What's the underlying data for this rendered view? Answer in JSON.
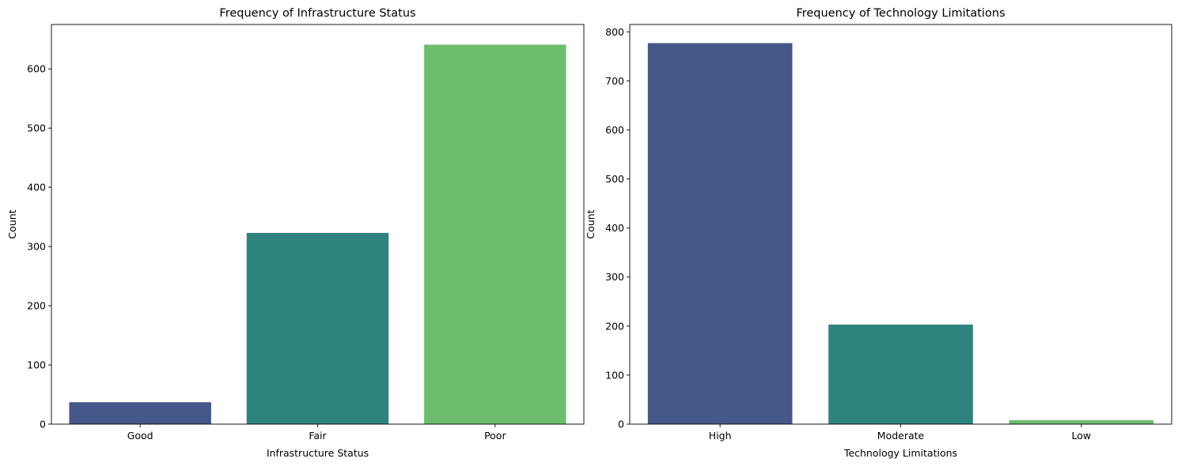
{
  "chart_data": [
    {
      "type": "bar",
      "title": "Frequency of Infrastructure Status",
      "xlabel": "Infrastructure Status",
      "ylabel": "Count",
      "categories": [
        "Good",
        "Fair",
        "Poor"
      ],
      "values": [
        37,
        323,
        641
      ],
      "colors": [
        "#46578a",
        "#2f837f",
        "#6cbd6e"
      ],
      "ylim": [
        0,
        675
      ],
      "yticks": [
        0,
        100,
        200,
        300,
        400,
        500,
        600
      ],
      "grid": false,
      "legend": "none"
    },
    {
      "type": "bar",
      "title": "Frequency of Technology Limitations",
      "xlabel": "Technology Limitations",
      "ylabel": "Count",
      "categories": [
        "High",
        "Moderate",
        "Low"
      ],
      "values": [
        777,
        203,
        8
      ],
      "colors": [
        "#46578a",
        "#2f837f",
        "#6cbd6e"
      ],
      "ylim": [
        0,
        815
      ],
      "yticks": [
        0,
        100,
        200,
        300,
        400,
        500,
        600,
        700,
        800
      ],
      "grid": false,
      "legend": "none"
    }
  ]
}
